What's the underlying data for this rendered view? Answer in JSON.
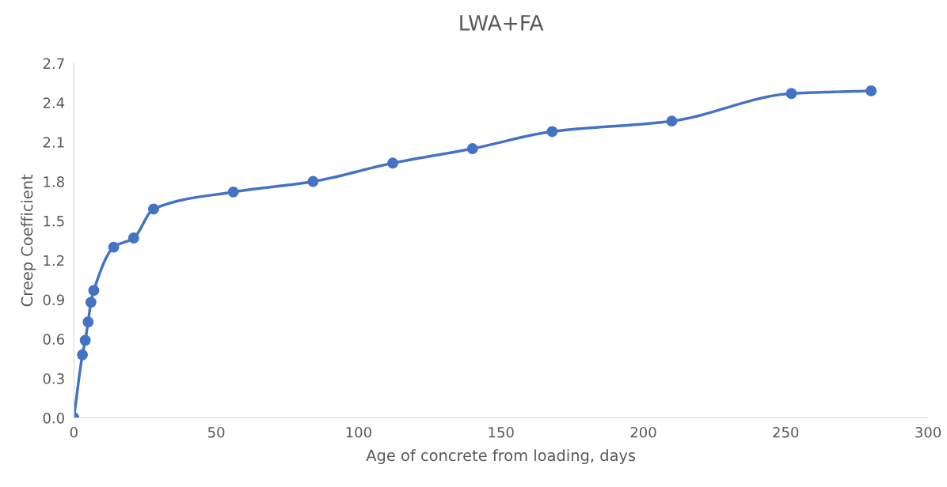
{
  "chart_data": {
    "type": "line",
    "title": "LWA+FA",
    "xlabel": "Age of concrete from loading, days",
    "ylabel": "Creep Coefficient",
    "x": [
      0,
      3,
      4,
      5,
      6,
      7,
      14,
      21,
      28,
      56,
      84,
      112,
      140,
      168,
      210,
      252,
      280
    ],
    "series": [
      {
        "color": "#4472c4",
        "values": [
          0.0,
          0.48,
          0.59,
          0.73,
          0.88,
          0.97,
          1.3,
          1.37,
          1.59,
          1.72,
          1.8,
          1.94,
          2.05,
          2.18,
          2.26,
          2.47,
          2.49
        ]
      }
    ],
    "xlim": [
      0,
      300
    ],
    "xticks": [
      0,
      50,
      100,
      150,
      200,
      250,
      300
    ],
    "ylim": [
      0,
      2.7
    ],
    "yticks": [
      {
        "value": 0,
        "label": "0.0"
      },
      {
        "value": 0.3,
        "label": "0.3"
      },
      {
        "value": 0.6,
        "label": "0.6"
      },
      {
        "value": 0.9,
        "label": "0.9"
      },
      {
        "value": 1.2,
        "label": "1.2"
      },
      {
        "value": 1.5,
        "label": "1.5"
      },
      {
        "value": 1.8,
        "label": "1.8"
      },
      {
        "value": 2.1,
        "label": "2.1"
      },
      {
        "value": 2.4,
        "label": "2.4"
      },
      {
        "value": 2.7,
        "label": "2.7"
      }
    ],
    "grid": false,
    "marker": "circle",
    "line_style": "solid"
  }
}
